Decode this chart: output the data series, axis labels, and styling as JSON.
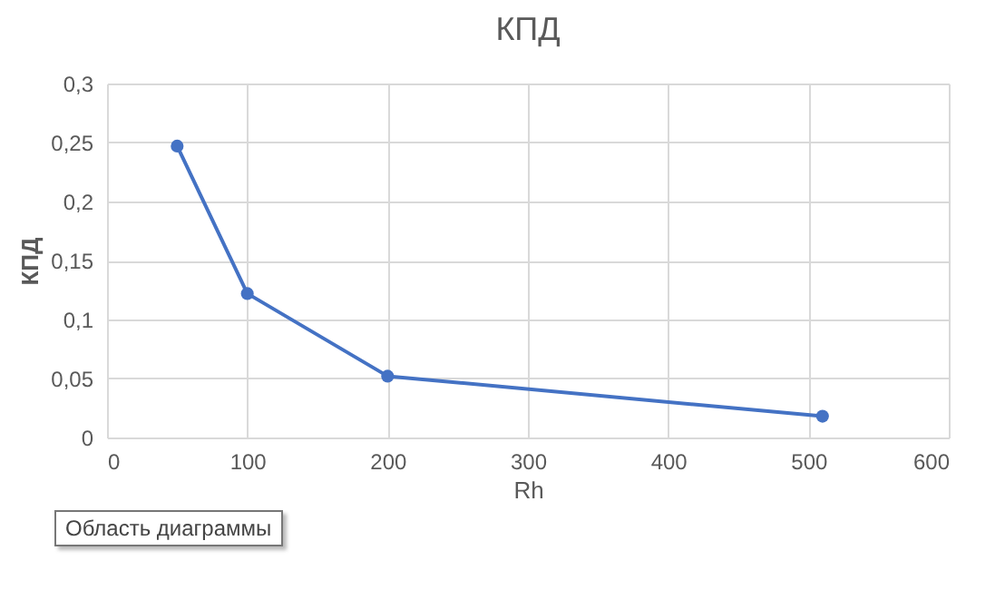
{
  "chart_data": {
    "type": "line",
    "title": "КПД",
    "xlabel": "Rh",
    "ylabel": "КПД",
    "x": [
      50,
      100,
      200,
      510
    ],
    "series": [
      {
        "color": "#4472c4",
        "values": [
          0.247,
          0.122,
          0.052,
          0.018
        ]
      }
    ],
    "xlim": [
      0,
      600
    ],
    "xticks": [
      0,
      100,
      200,
      300,
      400,
      500,
      600
    ],
    "ylim": [
      0,
      0.3
    ],
    "yticks": [
      0,
      {
        "value": 0.05,
        "label": "0,05"
      },
      {
        "value": 0.1,
        "label": "0,1"
      },
      {
        "value": 0.15,
        "label": "0,15"
      },
      {
        "value": 0.2,
        "label": "0,2"
      },
      {
        "value": 0.25,
        "label": "0,25"
      },
      {
        "value": 0.3,
        "label": "0,3"
      }
    ],
    "grid": true,
    "marker": "circle",
    "line_style": "solid",
    "annotations": [
      "Область диаграммы"
    ]
  }
}
